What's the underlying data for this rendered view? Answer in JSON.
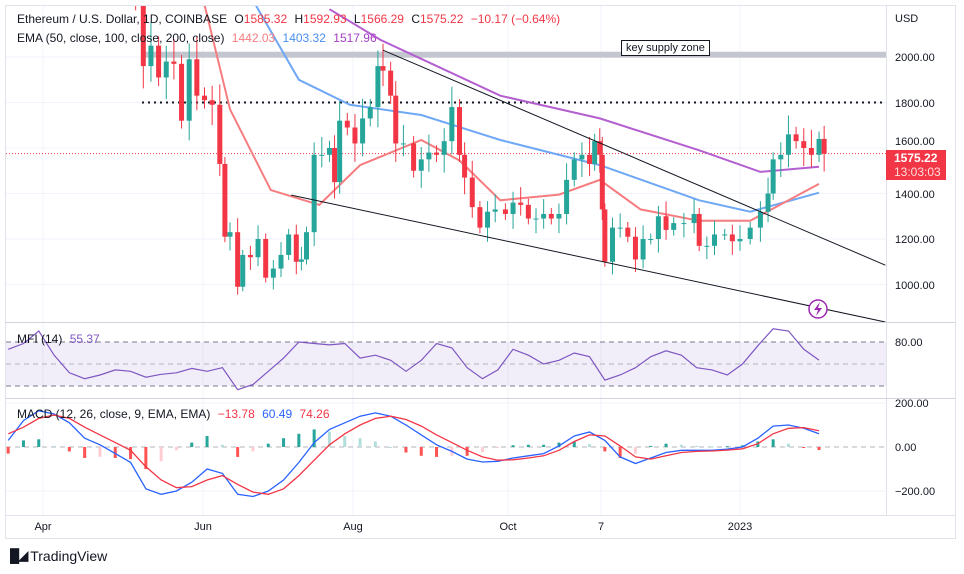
{
  "header": {
    "symbol": "Ethereum / U.S. Dollar, 1D, COINBASE",
    "open_label": "O",
    "open": "1585.32",
    "high_label": "H",
    "high": "1592.93",
    "low_label": "L",
    "low": "1566.29",
    "close_label": "C",
    "close": "1575.22",
    "change": "−10.17 (−0.64%)",
    "ema_label": "EMA (50, close, 100, close, 200, close)",
    "ema50": "1442.03",
    "ema100": "1403.32",
    "ema200": "1517.96"
  },
  "price_axis": {
    "currency": "USD",
    "ticks": [
      "2000.00",
      "1800.00",
      "1600.00",
      "1400.00",
      "1200.00",
      "1000.00"
    ],
    "current_price": "1575.22",
    "countdown": "13:03:03"
  },
  "mfi": {
    "label": "MFI (14)",
    "value": "55.37",
    "tick": "80.00"
  },
  "macd": {
    "label": "MACD (12, 26, close, 9, EMA, EMA)",
    "hist": "−13.78",
    "macd": "60.49",
    "signal": "74.26",
    "ticks": [
      "200.00",
      "0.00",
      "−200.00"
    ]
  },
  "time_axis": {
    "labels": [
      "Apr",
      "Jun",
      "Aug",
      "Oct",
      "7",
      "2023"
    ]
  },
  "annotations": {
    "key_supply_zone": "key supply zone"
  },
  "branding": {
    "logo": "TradingView"
  },
  "colors": {
    "up": "#26a69a",
    "down": "#f23645",
    "ema50": "#f77c80",
    "ema100": "#6fa8f5",
    "ema200": "#b45fcf",
    "mfi": "#7e57c2",
    "macd": "#2962ff",
    "signal": "#f23645"
  },
  "chart_data": {
    "type": "candlestick",
    "title": "Ethereum / U.S. Dollar, 1D, COINBASE",
    "ylabel": "USD",
    "ylim": [
      800,
      2200
    ],
    "grid": true,
    "closes": [
      [
        "2022-05-09",
        2250
      ],
      [
        "2022-05-12",
        1960
      ],
      [
        "2022-05-15",
        2050
      ],
      [
        "2022-05-18",
        1910
      ],
      [
        "2022-05-21",
        1980
      ],
      [
        "2022-05-24",
        1970
      ],
      [
        "2022-05-27",
        1720
      ],
      [
        "2022-05-30",
        1990
      ],
      [
        "2022-06-02",
        1830
      ],
      [
        "2022-06-05",
        1810
      ],
      [
        "2022-06-08",
        1790
      ],
      [
        "2022-06-11",
        1530
      ],
      [
        "2022-06-13",
        1210
      ],
      [
        "2022-06-15",
        1230
      ],
      [
        "2022-06-18",
        990
      ],
      [
        "2022-06-20",
        1130
      ],
      [
        "2022-06-23",
        1120
      ],
      [
        "2022-06-26",
        1200
      ],
      [
        "2022-06-29",
        1030
      ],
      [
        "2022-07-02",
        1070
      ],
      [
        "2022-07-05",
        1130
      ],
      [
        "2022-07-08",
        1220
      ],
      [
        "2022-07-11",
        1100
      ],
      [
        "2022-07-13",
        1110
      ],
      [
        "2022-07-15",
        1230
      ],
      [
        "2022-07-18",
        1570
      ],
      [
        "2022-07-21",
        1570
      ],
      [
        "2022-07-24",
        1600
      ],
      [
        "2022-07-26",
        1450
      ],
      [
        "2022-07-28",
        1720
      ],
      [
        "2022-07-31",
        1690
      ],
      [
        "2022-08-03",
        1620
      ],
      [
        "2022-08-06",
        1730
      ],
      [
        "2022-08-09",
        1780
      ],
      [
        "2022-08-12",
        1960
      ],
      [
        "2022-08-14",
        1940
      ],
      [
        "2022-08-17",
        1830
      ],
      [
        "2022-08-19",
        1620
      ],
      [
        "2022-08-22",
        1620
      ],
      [
        "2022-08-26",
        1500
      ],
      [
        "2022-08-29",
        1550
      ],
      [
        "2022-09-01",
        1580
      ],
      [
        "2022-09-04",
        1570
      ],
      [
        "2022-09-07",
        1630
      ],
      [
        "2022-09-10",
        1780
      ],
      [
        "2022-09-13",
        1570
      ],
      [
        "2022-09-15",
        1470
      ],
      [
        "2022-09-18",
        1340
      ],
      [
        "2022-09-21",
        1250
      ],
      [
        "2022-09-24",
        1320
      ],
      [
        "2022-09-27",
        1330
      ],
      [
        "2022-10-01",
        1310
      ],
      [
        "2022-10-04",
        1360
      ],
      [
        "2022-10-07",
        1350
      ],
      [
        "2022-10-10",
        1290
      ],
      [
        "2022-10-13",
        1290
      ],
      [
        "2022-10-16",
        1310
      ],
      [
        "2022-10-19",
        1290
      ],
      [
        "2022-10-22",
        1310
      ],
      [
        "2022-10-25",
        1460
      ],
      [
        "2022-10-28",
        1550
      ],
      [
        "2022-10-31",
        1570
      ],
      [
        "2022-11-03",
        1530
      ],
      [
        "2022-11-05",
        1630
      ],
      [
        "2022-11-07",
        1570
      ],
      [
        "2022-11-08",
        1330
      ],
      [
        "2022-11-09",
        1100
      ],
      [
        "2022-11-12",
        1250
      ],
      [
        "2022-11-15",
        1250
      ],
      [
        "2022-11-18",
        1210
      ],
      [
        "2022-11-21",
        1110
      ],
      [
        "2022-11-24",
        1200
      ],
      [
        "2022-11-27",
        1200
      ],
      [
        "2022-11-30",
        1300
      ],
      [
        "2022-12-03",
        1240
      ],
      [
        "2022-12-06",
        1270
      ],
      [
        "2022-12-10",
        1270
      ],
      [
        "2022-12-14",
        1310
      ],
      [
        "2022-12-16",
        1170
      ],
      [
        "2022-12-19",
        1170
      ],
      [
        "2022-12-22",
        1220
      ],
      [
        "2022-12-26",
        1220
      ],
      [
        "2022-12-29",
        1190
      ],
      [
        "2023-01-01",
        1200
      ],
      [
        "2023-01-05",
        1250
      ],
      [
        "2023-01-09",
        1320
      ],
      [
        "2023-01-12",
        1400
      ],
      [
        "2023-01-14",
        1550
      ],
      [
        "2023-01-17",
        1570
      ],
      [
        "2023-01-20",
        1660
      ],
      [
        "2023-01-23",
        1630
      ],
      [
        "2023-01-26",
        1600
      ],
      [
        "2023-01-29",
        1570
      ],
      [
        "2023-02-01",
        1640
      ],
      [
        "2023-02-03",
        1575.22
      ]
    ],
    "ema50": [
      [
        "2022-06-05",
        2230
      ],
      [
        "2022-06-15",
        1770
      ],
      [
        "2022-07-01",
        1415
      ],
      [
        "2022-07-20",
        1350
      ],
      [
        "2022-08-05",
        1525
      ],
      [
        "2022-08-29",
        1635
      ],
      [
        "2022-09-13",
        1545
      ],
      [
        "2022-09-29",
        1370
      ],
      [
        "2022-10-22",
        1395
      ],
      [
        "2022-11-07",
        1460
      ],
      [
        "2022-11-23",
        1330
      ],
      [
        "2022-12-16",
        1280
      ],
      [
        "2023-01-05",
        1280
      ],
      [
        "2023-02-01",
        1442.03
      ]
    ],
    "ema100": [
      [
        "2022-06-25",
        2230
      ],
      [
        "2022-07-12",
        1900
      ],
      [
        "2022-08-01",
        1790
      ],
      [
        "2022-08-29",
        1745
      ],
      [
        "2022-09-29",
        1635
      ],
      [
        "2022-11-07",
        1525
      ],
      [
        "2022-12-16",
        1370
      ],
      [
        "2023-01-05",
        1320
      ],
      [
        "2023-02-01",
        1403.32
      ]
    ],
    "ema200": [
      [
        "2022-07-24",
        2210
      ],
      [
        "2022-08-13",
        2075
      ],
      [
        "2022-09-29",
        1830
      ],
      [
        "2022-11-07",
        1730
      ],
      [
        "2022-12-16",
        1590
      ],
      [
        "2023-01-09",
        1495
      ],
      [
        "2023-02-01",
        1517.96
      ]
    ],
    "levels": [
      {
        "name": "resistance",
        "price": 1800
      },
      {
        "name": "key supply zone",
        "price": 2010
      }
    ],
    "trendlines": [
      {
        "name": "upper",
        "from": [
          "2022-08-14",
          2030
        ],
        "to": [
          "2023-02-27",
          1085
        ]
      },
      {
        "name": "lower",
        "from": [
          "2022-07-09",
          1393
        ],
        "to": [
          "2023-02-27",
          835
        ]
      }
    ],
    "indicator_series_start": "2022-03-20",
    "indicator_step_days": 6,
    "mfi_values": [
      70,
      78,
      95,
      62,
      38,
      30,
      35,
      42,
      40,
      32,
      36,
      38,
      44,
      40,
      45,
      15,
      22,
      40,
      58,
      80,
      78,
      76,
      78,
      58,
      62,
      55,
      40,
      55,
      78,
      72,
      45,
      30,
      42,
      70,
      62,
      50,
      55,
      65,
      60,
      28,
      35,
      45,
      60,
      68,
      62,
      45,
      42,
      35,
      50,
      75,
      98,
      95,
      70,
      55.37
    ],
    "mfi_bands": [
      20,
      50,
      80
    ],
    "macd_values": [
      30,
      120,
      165,
      150,
      110,
      40,
      10,
      -30,
      -70,
      -190,
      -215,
      -200,
      -160,
      -100,
      -120,
      -215,
      -225,
      -200,
      -150,
      -70,
      20,
      80,
      110,
      140,
      155,
      140,
      100,
      55,
      10,
      -20,
      -55,
      -68,
      -65,
      -50,
      -40,
      -30,
      5,
      50,
      68,
      30,
      -45,
      -75,
      -50,
      -25,
      -15,
      -15,
      -15,
      -10,
      0,
      40,
      95,
      100,
      85,
      60.49
    ],
    "signal_values": [
      60,
      90,
      130,
      145,
      130,
      90,
      55,
      20,
      -15,
      -90,
      -150,
      -185,
      -180,
      -150,
      -130,
      -170,
      -205,
      -215,
      -190,
      -130,
      -60,
      10,
      60,
      100,
      130,
      140,
      125,
      95,
      55,
      20,
      -15,
      -45,
      -60,
      -58,
      -50,
      -40,
      -15,
      25,
      55,
      50,
      5,
      -45,
      -55,
      -40,
      -25,
      -20,
      -18,
      -14,
      -8,
      15,
      60,
      85,
      88,
      74.26
    ]
  }
}
